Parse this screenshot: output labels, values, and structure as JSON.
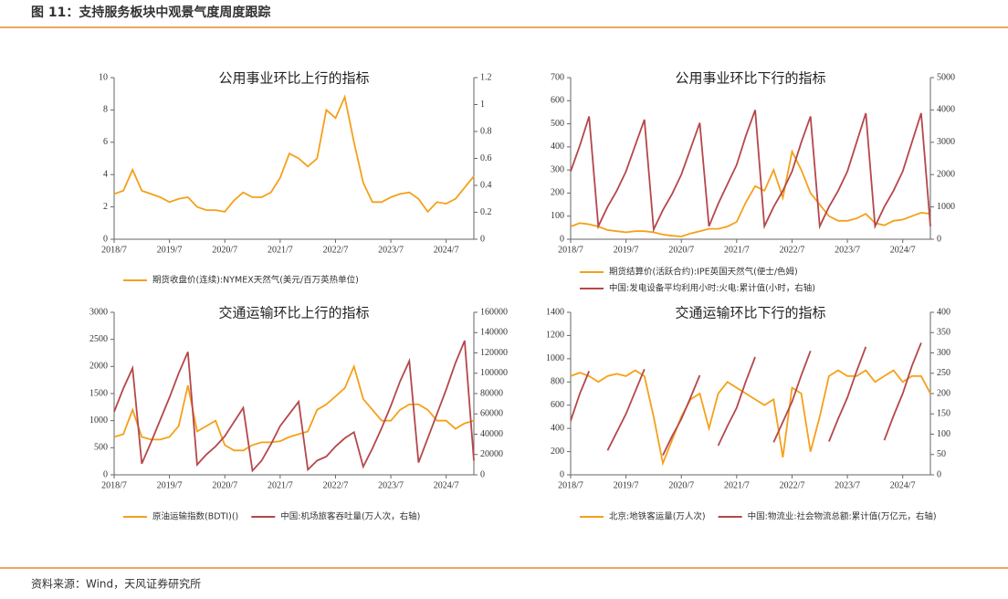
{
  "header": {
    "title": "图 11：支持服务板块中观景气度周度跟踪"
  },
  "footer": {
    "source": "资料来源：Wind，天风证券研究所"
  },
  "chart_data": [
    {
      "type": "line",
      "title": "公用事业环比上行的指标",
      "x": [
        "2018/7",
        "2018/9",
        "2018/11",
        "2019/1",
        "2019/3",
        "2019/5",
        "2019/7",
        "2019/9",
        "2019/11",
        "2020/1",
        "2020/3",
        "2020/5",
        "2020/7",
        "2020/9",
        "2020/11",
        "2021/1",
        "2021/3",
        "2021/5",
        "2021/7",
        "2021/9",
        "2021/11",
        "2022/1",
        "2022/3",
        "2022/5",
        "2022/7",
        "2022/9",
        "2022/11",
        "2023/1",
        "2023/3",
        "2023/5",
        "2023/7",
        "2023/9",
        "2023/11",
        "2024/1",
        "2024/3",
        "2024/5",
        "2024/7",
        "2024/9",
        "2024/11",
        "2025/1"
      ],
      "xlim": [
        "2018/7",
        "2025/1"
      ],
      "xticks": [
        "2018/7",
        "2019/7",
        "2020/7",
        "2021/7",
        "2022/7",
        "2023/7",
        "2024/7"
      ],
      "ylim": [
        0,
        10
      ],
      "yticks": [
        0,
        2,
        4,
        6,
        8,
        10
      ],
      "y2lim": [
        0,
        1.2
      ],
      "y2ticks": [
        0,
        0.2,
        0.4,
        0.6,
        0.8,
        1,
        1.2
      ],
      "series": [
        {
          "name": "期货收盘价(连续):NYMEX天然气(美元/百万英热单位)",
          "color": "#f5a01a",
          "values": [
            2.8,
            3.0,
            4.3,
            3.0,
            2.8,
            2.6,
            2.3,
            2.5,
            2.6,
            2.0,
            1.8,
            1.8,
            1.7,
            2.4,
            2.9,
            2.6,
            2.6,
            2.9,
            3.8,
            5.3,
            5.0,
            4.5,
            5.0,
            8.0,
            7.5,
            8.8,
            6.0,
            3.5,
            2.3,
            2.3,
            2.6,
            2.8,
            2.9,
            2.5,
            1.7,
            2.3,
            2.2,
            2.5,
            3.2,
            3.9
          ]
        }
      ]
    },
    {
      "type": "line",
      "title": "公用事业环比下行的指标",
      "x": [
        "2018/7",
        "2018/9",
        "2018/11",
        "2019/1",
        "2019/3",
        "2019/5",
        "2019/7",
        "2019/9",
        "2019/11",
        "2020/1",
        "2020/3",
        "2020/5",
        "2020/7",
        "2020/9",
        "2020/11",
        "2021/1",
        "2021/3",
        "2021/5",
        "2021/7",
        "2021/9",
        "2021/11",
        "2022/1",
        "2022/3",
        "2022/5",
        "2022/7",
        "2022/9",
        "2022/11",
        "2023/1",
        "2023/3",
        "2023/5",
        "2023/7",
        "2023/9",
        "2023/11",
        "2024/1",
        "2024/3",
        "2024/5",
        "2024/7",
        "2024/9",
        "2024/11",
        "2025/1"
      ],
      "xlim": [
        "2018/7",
        "2025/1"
      ],
      "xticks": [
        "2018/7",
        "2019/7",
        "2020/7",
        "2021/7",
        "2022/7",
        "2023/7",
        "2024/7"
      ],
      "ylim": [
        0,
        700
      ],
      "yticks": [
        0,
        100,
        200,
        300,
        400,
        500,
        600,
        700
      ],
      "y2lim": [
        0,
        5000
      ],
      "y2ticks": [
        0,
        1000,
        2000,
        3000,
        4000,
        5000
      ],
      "series": [
        {
          "name": "期货结算价(活跃合约):IPE英国天然气(便士/色姆)",
          "color": "#f5a01a",
          "values": [
            55,
            70,
            65,
            55,
            40,
            35,
            30,
            35,
            35,
            30,
            20,
            15,
            12,
            25,
            35,
            45,
            45,
            55,
            75,
            160,
            230,
            210,
            300,
            180,
            380,
            300,
            200,
            150,
            100,
            80,
            80,
            90,
            110,
            70,
            60,
            80,
            85,
            100,
            115,
            110
          ]
        },
        {
          "name": "中国:发电设备平均利用小时:火电:累计值(小时，右轴)",
          "color": "#b5474b",
          "axis": "y2",
          "values": [
            2100,
            2900,
            3800,
            400,
            1000,
            1500,
            2100,
            2900,
            3700,
            300,
            900,
            1400,
            2000,
            2800,
            3600,
            400,
            1100,
            1700,
            2300,
            3200,
            4000,
            400,
            1000,
            1500,
            2100,
            3000,
            3800,
            400,
            1000,
            1500,
            2100,
            3000,
            3900,
            400,
            1000,
            1500,
            2100,
            3000,
            3900,
            400
          ]
        }
      ]
    },
    {
      "type": "line",
      "title": "交通运输环比上行的指标",
      "x": [
        "2018/7",
        "2018/9",
        "2018/11",
        "2019/1",
        "2019/3",
        "2019/5",
        "2019/7",
        "2019/9",
        "2019/11",
        "2020/1",
        "2020/3",
        "2020/5",
        "2020/7",
        "2020/9",
        "2020/11",
        "2021/1",
        "2021/3",
        "2021/5",
        "2021/7",
        "2021/9",
        "2021/11",
        "2022/1",
        "2022/3",
        "2022/5",
        "2022/7",
        "2022/9",
        "2022/11",
        "2023/1",
        "2023/3",
        "2023/5",
        "2023/7",
        "2023/9",
        "2023/11",
        "2024/1",
        "2024/3",
        "2024/5",
        "2024/7",
        "2024/9",
        "2024/11",
        "2025/1"
      ],
      "xlim": [
        "2018/7",
        "2025/1"
      ],
      "xticks": [
        "2018/7",
        "2019/7",
        "2020/7",
        "2021/7",
        "2022/7",
        "2023/7",
        "2024/7"
      ],
      "ylim": [
        0,
        3000
      ],
      "yticks": [
        0,
        500,
        1000,
        1500,
        2000,
        2500,
        3000
      ],
      "y2lim": [
        0,
        160000
      ],
      "y2ticks": [
        0,
        20000,
        40000,
        60000,
        80000,
        100000,
        120000,
        140000,
        160000
      ],
      "series": [
        {
          "name": "原油运输指数(BDTI)()",
          "color": "#f5a01a",
          "values": [
            700,
            750,
            1200,
            700,
            650,
            650,
            700,
            900,
            1650,
            800,
            900,
            1000,
            550,
            450,
            450,
            550,
            600,
            600,
            620,
            700,
            750,
            800,
            1200,
            1300,
            1450,
            1600,
            2000,
            1400,
            1200,
            1000,
            1000,
            1200,
            1300,
            1300,
            1200,
            1000,
            1000,
            850,
            950,
            1000
          ]
        },
        {
          "name": "中国:机场旅客吞吐量(万人次，右轴)",
          "color": "#b5474b",
          "axis": "y2",
          "values": [
            62000,
            85000,
            105000,
            11000,
            32000,
            54000,
            76000,
            100000,
            121000,
            10000,
            20000,
            28000,
            38000,
            52000,
            66000,
            4000,
            14000,
            30000,
            48000,
            60000,
            72000,
            5000,
            14000,
            18000,
            28000,
            36000,
            42000,
            8000,
            26000,
            46000,
            68000,
            92000,
            112000,
            12000,
            36000,
            60000,
            84000,
            110000,
            132000,
            14000
          ]
        }
      ]
    },
    {
      "type": "line",
      "title": "交通运输环比下行的指标",
      "x": [
        "2018/7",
        "2018/9",
        "2018/11",
        "2019/1",
        "2019/3",
        "2019/5",
        "2019/7",
        "2019/9",
        "2019/11",
        "2020/1",
        "2020/3",
        "2020/5",
        "2020/7",
        "2020/9",
        "2020/11",
        "2021/1",
        "2021/3",
        "2021/5",
        "2021/7",
        "2021/9",
        "2021/11",
        "2022/1",
        "2022/3",
        "2022/5",
        "2022/7",
        "2022/9",
        "2022/11",
        "2023/1",
        "2023/3",
        "2023/5",
        "2023/7",
        "2023/9",
        "2023/11",
        "2024/1",
        "2024/3",
        "2024/5",
        "2024/7",
        "2024/9",
        "2024/11",
        "2025/1"
      ],
      "xlim": [
        "2018/7",
        "2025/1"
      ],
      "xticks": [
        "2018/7",
        "2019/7",
        "2020/7",
        "2021/7",
        "2022/7",
        "2023/7",
        "2024/7"
      ],
      "ylim": [
        0,
        1400
      ],
      "yticks": [
        0,
        200,
        400,
        600,
        800,
        1000,
        1200,
        1400
      ],
      "y2lim": [
        0,
        400
      ],
      "y2ticks": [
        0,
        50,
        100,
        150,
        200,
        250,
        300,
        350,
        400
      ],
      "series": [
        {
          "name": "北京:地铁客运量(万人次)",
          "color": "#f5a01a",
          "values": [
            850,
            880,
            850,
            800,
            850,
            870,
            850,
            900,
            850,
            500,
            100,
            300,
            500,
            650,
            700,
            400,
            700,
            800,
            750,
            700,
            650,
            600,
            650,
            150,
            750,
            700,
            200,
            500,
            850,
            900,
            850,
            850,
            900,
            800,
            850,
            900,
            800,
            850,
            850,
            700
          ]
        },
        {
          "name": "中国:物流业:社会物流总额:累计值(万亿元，右轴)",
          "color": "#b5474b",
          "axis": "y2",
          "values": [
            133,
            200,
            255,
            null,
            60,
            105,
            150,
            205,
            260,
            null,
            48,
            95,
            137,
            190,
            245,
            null,
            72,
            120,
            165,
            230,
            290,
            null,
            80,
            130,
            180,
            245,
            305,
            null,
            82,
            138,
            190,
            255,
            315,
            null,
            85,
            145,
            200,
            268,
            325,
            null
          ]
        }
      ]
    }
  ]
}
